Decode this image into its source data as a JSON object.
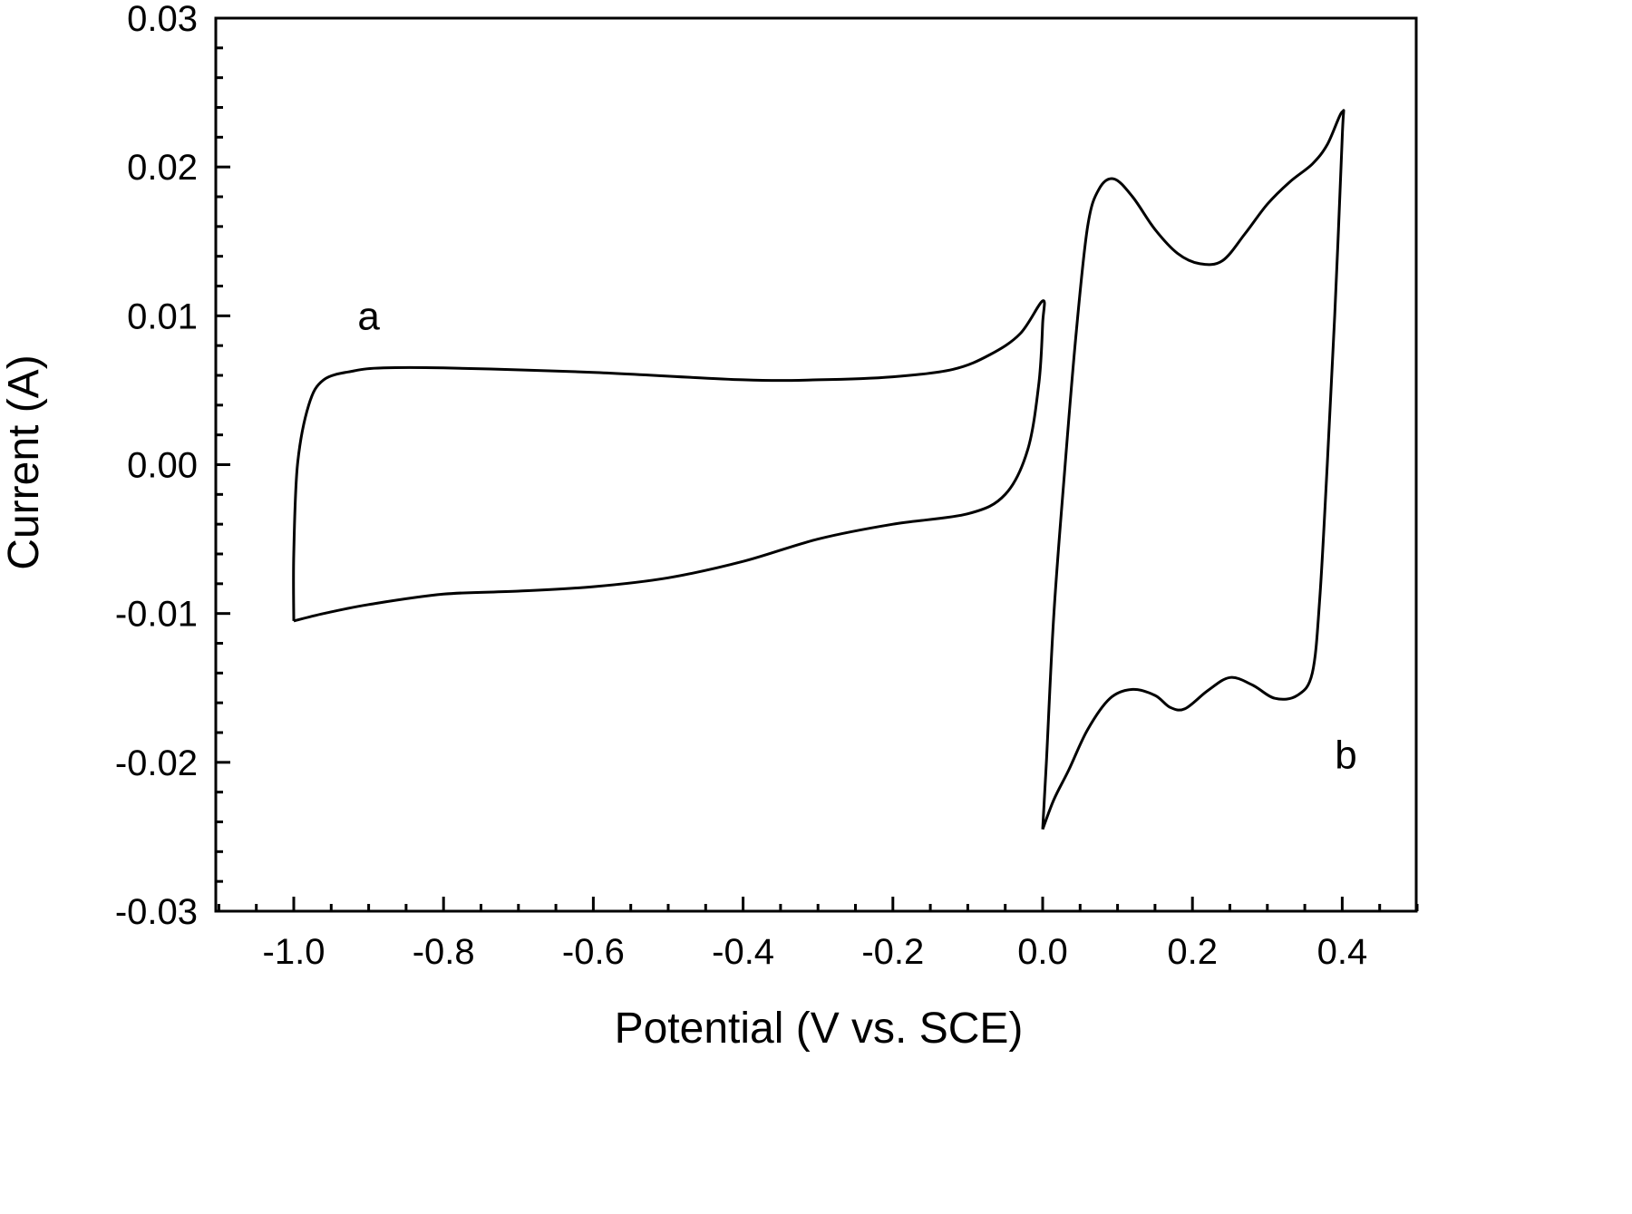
{
  "chart_data": {
    "type": "line",
    "title": "",
    "xlabel": "Potential (V vs. SCE)",
    "ylabel": "Current (A)",
    "xlim": [
      -1.1,
      0.5
    ],
    "ylim": [
      -0.03,
      0.03
    ],
    "x_ticks": [
      -1.0,
      -0.8,
      -0.6,
      -0.4,
      -0.2,
      0.0,
      0.2,
      0.4
    ],
    "x_tick_labels": [
      "-1.0",
      "-0.8",
      "-0.6",
      "-0.4",
      "-0.2",
      "0.0",
      "0.2",
      "0.4"
    ],
    "y_ticks": [
      0.03,
      0.02,
      0.01,
      0.0,
      -0.01,
      -0.02,
      -0.03
    ],
    "y_tick_labels": [
      "0.03",
      "0.02",
      "0.01",
      "0.00",
      "-0.01",
      "-0.02",
      "-0.03"
    ],
    "grid": false,
    "legend": null,
    "series": [
      {
        "name": "a",
        "label_position": [
          -0.9,
          0.01
        ],
        "points": [
          [
            -1.0,
            -0.0105
          ],
          [
            -1.0,
            -0.006
          ],
          [
            -0.995,
            0.0
          ],
          [
            -0.98,
            0.004
          ],
          [
            -0.96,
            0.0057
          ],
          [
            -0.92,
            0.0063
          ],
          [
            -0.88,
            0.0065
          ],
          [
            -0.8,
            0.0065
          ],
          [
            -0.6,
            0.0062
          ],
          [
            -0.4,
            0.0057
          ],
          [
            -0.3,
            0.0057
          ],
          [
            -0.2,
            0.0059
          ],
          [
            -0.12,
            0.0064
          ],
          [
            -0.07,
            0.0074
          ],
          [
            -0.03,
            0.0088
          ],
          [
            0.0,
            0.011
          ],
          [
            0.0,
            0.0095
          ],
          [
            -0.005,
            0.0055
          ],
          [
            -0.02,
            0.001
          ],
          [
            -0.05,
            -0.002
          ],
          [
            -0.1,
            -0.0033
          ],
          [
            -0.2,
            -0.004
          ],
          [
            -0.3,
            -0.005
          ],
          [
            -0.4,
            -0.0065
          ],
          [
            -0.5,
            -0.0076
          ],
          [
            -0.6,
            -0.0082
          ],
          [
            -0.7,
            -0.0085
          ],
          [
            -0.8,
            -0.0087
          ],
          [
            -0.9,
            -0.0094
          ],
          [
            -0.96,
            -0.01
          ],
          [
            -1.0,
            -0.0105
          ]
        ]
      },
      {
        "name": "b",
        "label_position": [
          0.405,
          -0.0195
        ],
        "points": [
          [
            0.0,
            -0.0245
          ],
          [
            0.005,
            -0.02
          ],
          [
            0.015,
            -0.01
          ],
          [
            0.03,
            0.0
          ],
          [
            0.045,
            0.009
          ],
          [
            0.06,
            0.016
          ],
          [
            0.075,
            0.0185
          ],
          [
            0.095,
            0.0192
          ],
          [
            0.12,
            0.018
          ],
          [
            0.15,
            0.0158
          ],
          [
            0.18,
            0.0142
          ],
          [
            0.21,
            0.0135
          ],
          [
            0.24,
            0.0137
          ],
          [
            0.27,
            0.0155
          ],
          [
            0.3,
            0.0175
          ],
          [
            0.33,
            0.019
          ],
          [
            0.36,
            0.0202
          ],
          [
            0.38,
            0.0215
          ],
          [
            0.4,
            0.0237
          ],
          [
            0.4,
            0.022
          ],
          [
            0.39,
            0.01
          ],
          [
            0.38,
            0.0
          ],
          [
            0.37,
            -0.009
          ],
          [
            0.36,
            -0.014
          ],
          [
            0.34,
            -0.0155
          ],
          [
            0.31,
            -0.0157
          ],
          [
            0.28,
            -0.0148
          ],
          [
            0.25,
            -0.0143
          ],
          [
            0.22,
            -0.0152
          ],
          [
            0.19,
            -0.0164
          ],
          [
            0.17,
            -0.0163
          ],
          [
            0.15,
            -0.0155
          ],
          [
            0.12,
            -0.0151
          ],
          [
            0.09,
            -0.0157
          ],
          [
            0.06,
            -0.0178
          ],
          [
            0.035,
            -0.0205
          ],
          [
            0.015,
            -0.0225
          ],
          [
            0.0,
            -0.0245
          ]
        ]
      }
    ]
  },
  "labels": {
    "a": "a",
    "b": "b"
  }
}
